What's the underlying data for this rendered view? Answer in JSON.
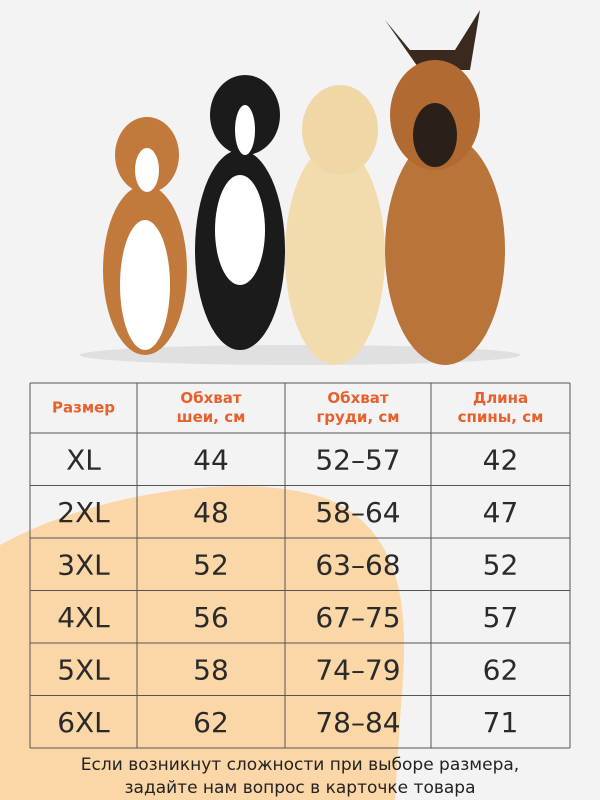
{
  "table": {
    "header": [
      [
        "Размер"
      ],
      [
        "Обхват",
        "шеи, см"
      ],
      [
        "Обхват",
        "груди, см"
      ],
      [
        "Длина",
        "спины, см"
      ]
    ],
    "rows": [
      [
        "XL",
        "44",
        "52–57",
        "42"
      ],
      [
        "2XL",
        "48",
        "58–64",
        "47"
      ],
      [
        "3XL",
        "52",
        "63–68",
        "52"
      ],
      [
        "4XL",
        "56",
        "67–75",
        "57"
      ],
      [
        "5XL",
        "58",
        "74–79",
        "62"
      ],
      [
        "6XL",
        "62",
        "78–84",
        "71"
      ]
    ]
  },
  "footer": [
    "Если возникнут сложности при выборе размера,",
    "задайте нам вопрос в карточке товара"
  ]
}
